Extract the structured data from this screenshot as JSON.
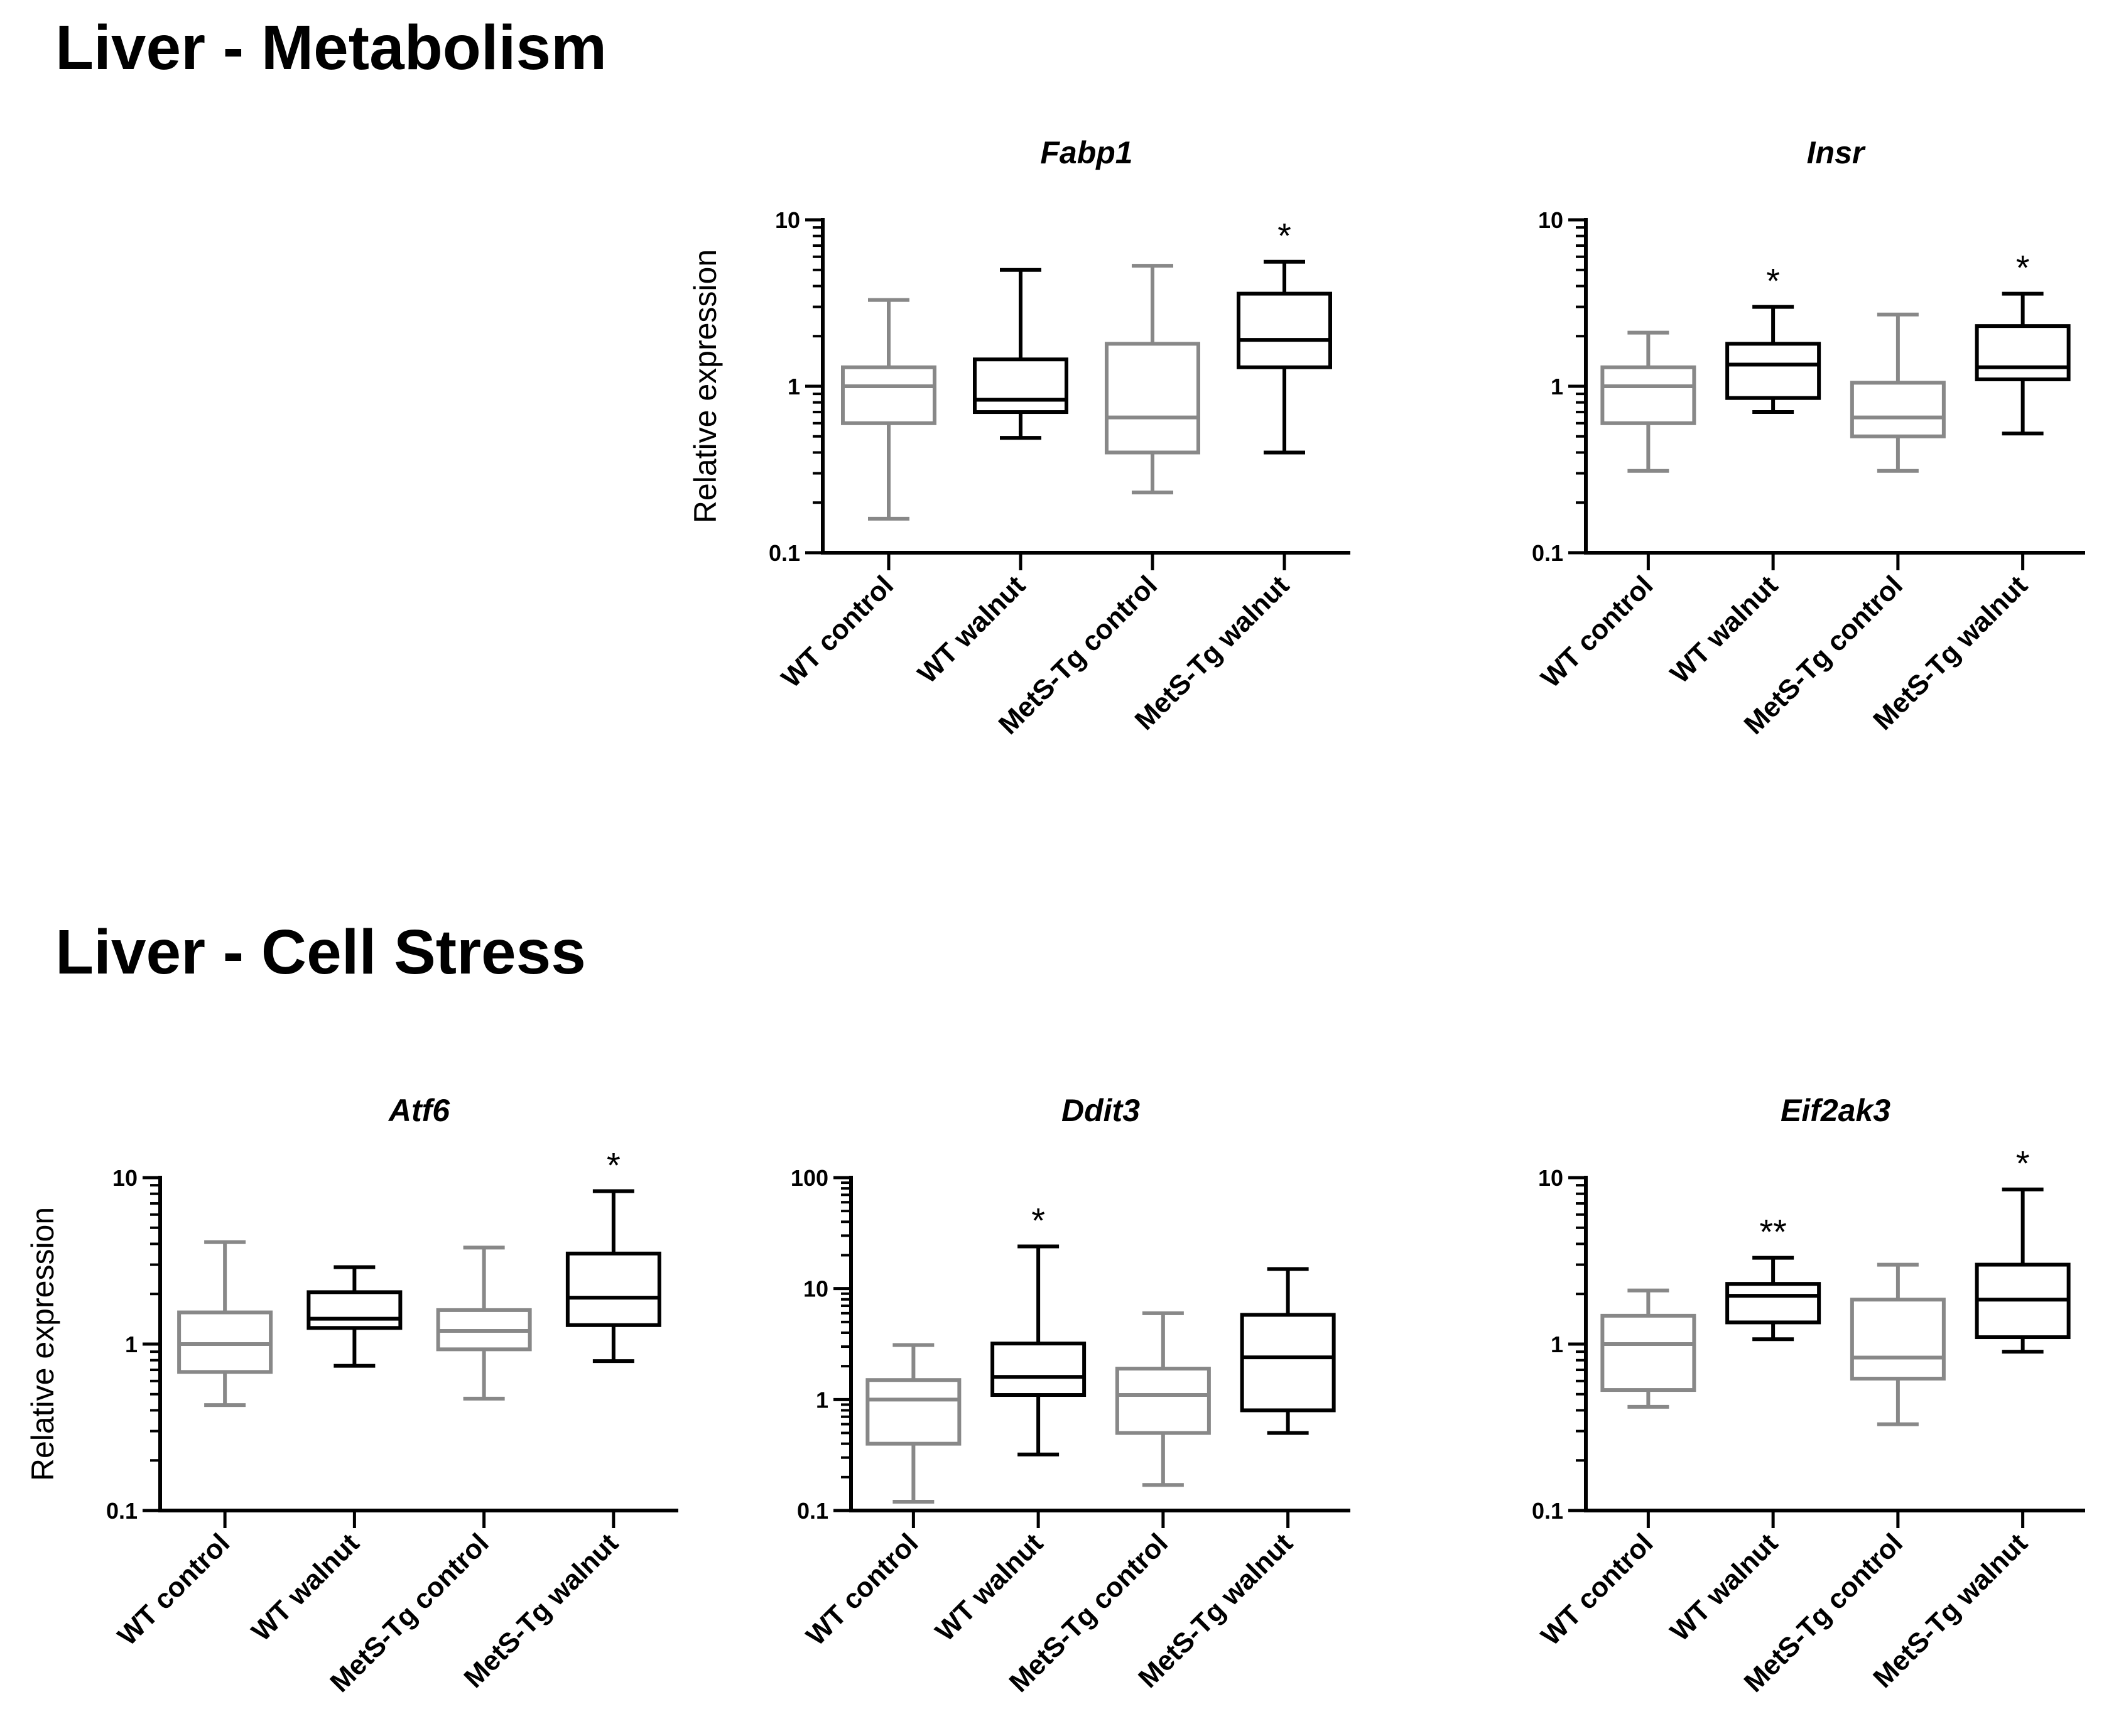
{
  "sections": {
    "metabolism": "Liver - Metabolism",
    "cell_stress": "Liver - Cell Stress"
  },
  "colors": {
    "control": "#888888",
    "walnut": "#000000",
    "axis": "#000000"
  },
  "chart_data": [
    {
      "type": "box",
      "section": "metabolism",
      "title": "Fabp1",
      "ylabel": "Relative expression",
      "yscale": "log",
      "ylim": [
        0.1,
        10
      ],
      "yticks": [
        "0.1",
        "1",
        "10"
      ],
      "categories": [
        "WT control",
        "WT walnut",
        "MetS-Tg control",
        "MetS-Tg walnut"
      ],
      "boxes": [
        {
          "min": 0.16,
          "q1": 0.6,
          "median": 1.0,
          "q3": 1.3,
          "max": 3.3,
          "group": "control",
          "sig": ""
        },
        {
          "min": 0.49,
          "q1": 0.7,
          "median": 0.83,
          "q3": 1.45,
          "max": 5.0,
          "group": "walnut",
          "sig": ""
        },
        {
          "min": 0.23,
          "q1": 0.4,
          "median": 0.65,
          "q3": 1.8,
          "max": 5.3,
          "group": "control",
          "sig": ""
        },
        {
          "min": 0.4,
          "q1": 1.3,
          "median": 1.9,
          "q3": 3.6,
          "max": 5.6,
          "group": "walnut",
          "sig": "*"
        }
      ]
    },
    {
      "type": "box",
      "section": "metabolism",
      "title": "Insr",
      "ylabel": "",
      "yscale": "log",
      "ylim": [
        0.1,
        10
      ],
      "yticks": [
        "0.1",
        "1",
        "10"
      ],
      "categories": [
        "WT control",
        "WT walnut",
        "MetS-Tg control",
        "MetS-Tg walnut"
      ],
      "boxes": [
        {
          "min": 0.31,
          "q1": 0.6,
          "median": 1.0,
          "q3": 1.3,
          "max": 2.1,
          "group": "control",
          "sig": ""
        },
        {
          "min": 0.7,
          "q1": 0.85,
          "median": 1.35,
          "q3": 1.8,
          "max": 3.0,
          "group": "walnut",
          "sig": "*"
        },
        {
          "min": 0.31,
          "q1": 0.5,
          "median": 0.65,
          "q3": 1.05,
          "max": 2.7,
          "group": "control",
          "sig": ""
        },
        {
          "min": 0.52,
          "q1": 1.1,
          "median": 1.3,
          "q3": 2.3,
          "max": 3.6,
          "group": "walnut",
          "sig": "*"
        }
      ]
    },
    {
      "type": "box",
      "section": "cell_stress",
      "title": "Atf6",
      "ylabel": "Relative expression",
      "yscale": "log",
      "ylim": [
        0.1,
        10
      ],
      "yticks": [
        "0.1",
        "1",
        "10"
      ],
      "categories": [
        "WT control",
        "WT walnut",
        "MetS-Tg control",
        "MetS-Tg walnut"
      ],
      "boxes": [
        {
          "min": 0.43,
          "q1": 0.68,
          "median": 1.0,
          "q3": 1.55,
          "max": 4.1,
          "group": "control",
          "sig": ""
        },
        {
          "min": 0.74,
          "q1": 1.25,
          "median": 1.42,
          "q3": 2.05,
          "max": 2.9,
          "group": "walnut",
          "sig": ""
        },
        {
          "min": 0.47,
          "q1": 0.93,
          "median": 1.2,
          "q3": 1.6,
          "max": 3.8,
          "group": "control",
          "sig": ""
        },
        {
          "min": 0.79,
          "q1": 1.3,
          "median": 1.9,
          "q3": 3.5,
          "max": 8.3,
          "group": "walnut",
          "sig": "*"
        }
      ]
    },
    {
      "type": "box",
      "section": "cell_stress",
      "title": "Ddit3",
      "ylabel": "",
      "yscale": "log",
      "ylim": [
        0.1,
        100
      ],
      "yticks": [
        "0.1",
        "1",
        "10",
        "100"
      ],
      "categories": [
        "WT control",
        "WT walnut",
        "MetS-Tg control",
        "MetS-Tg walnut"
      ],
      "boxes": [
        {
          "min": 0.12,
          "q1": 0.4,
          "median": 1.0,
          "q3": 1.5,
          "max": 3.1,
          "group": "control",
          "sig": ""
        },
        {
          "min": 0.32,
          "q1": 1.1,
          "median": 1.6,
          "q3": 3.2,
          "max": 24,
          "group": "walnut",
          "sig": "*"
        },
        {
          "min": 0.17,
          "q1": 0.5,
          "median": 1.1,
          "q3": 1.9,
          "max": 6.0,
          "group": "control",
          "sig": ""
        },
        {
          "min": 0.5,
          "q1": 0.8,
          "median": 2.4,
          "q3": 5.8,
          "max": 15,
          "group": "walnut",
          "sig": ""
        }
      ]
    },
    {
      "type": "box",
      "section": "cell_stress",
      "title": "Eif2ak3",
      "ylabel": "",
      "yscale": "log",
      "ylim": [
        0.1,
        10
      ],
      "yticks": [
        "0.1",
        "1",
        "10"
      ],
      "categories": [
        "WT control",
        "WT walnut",
        "MetS-Tg control",
        "MetS-Tg walnut"
      ],
      "boxes": [
        {
          "min": 0.42,
          "q1": 0.53,
          "median": 1.0,
          "q3": 1.48,
          "max": 2.1,
          "group": "control",
          "sig": ""
        },
        {
          "min": 1.07,
          "q1": 1.35,
          "median": 1.95,
          "q3": 2.3,
          "max": 3.3,
          "group": "walnut",
          "sig": "**"
        },
        {
          "min": 0.33,
          "q1": 0.62,
          "median": 0.83,
          "q3": 1.85,
          "max": 3.0,
          "group": "control",
          "sig": ""
        },
        {
          "min": 0.9,
          "q1": 1.1,
          "median": 1.85,
          "q3": 3.0,
          "max": 8.5,
          "group": "walnut",
          "sig": "*"
        }
      ]
    }
  ]
}
